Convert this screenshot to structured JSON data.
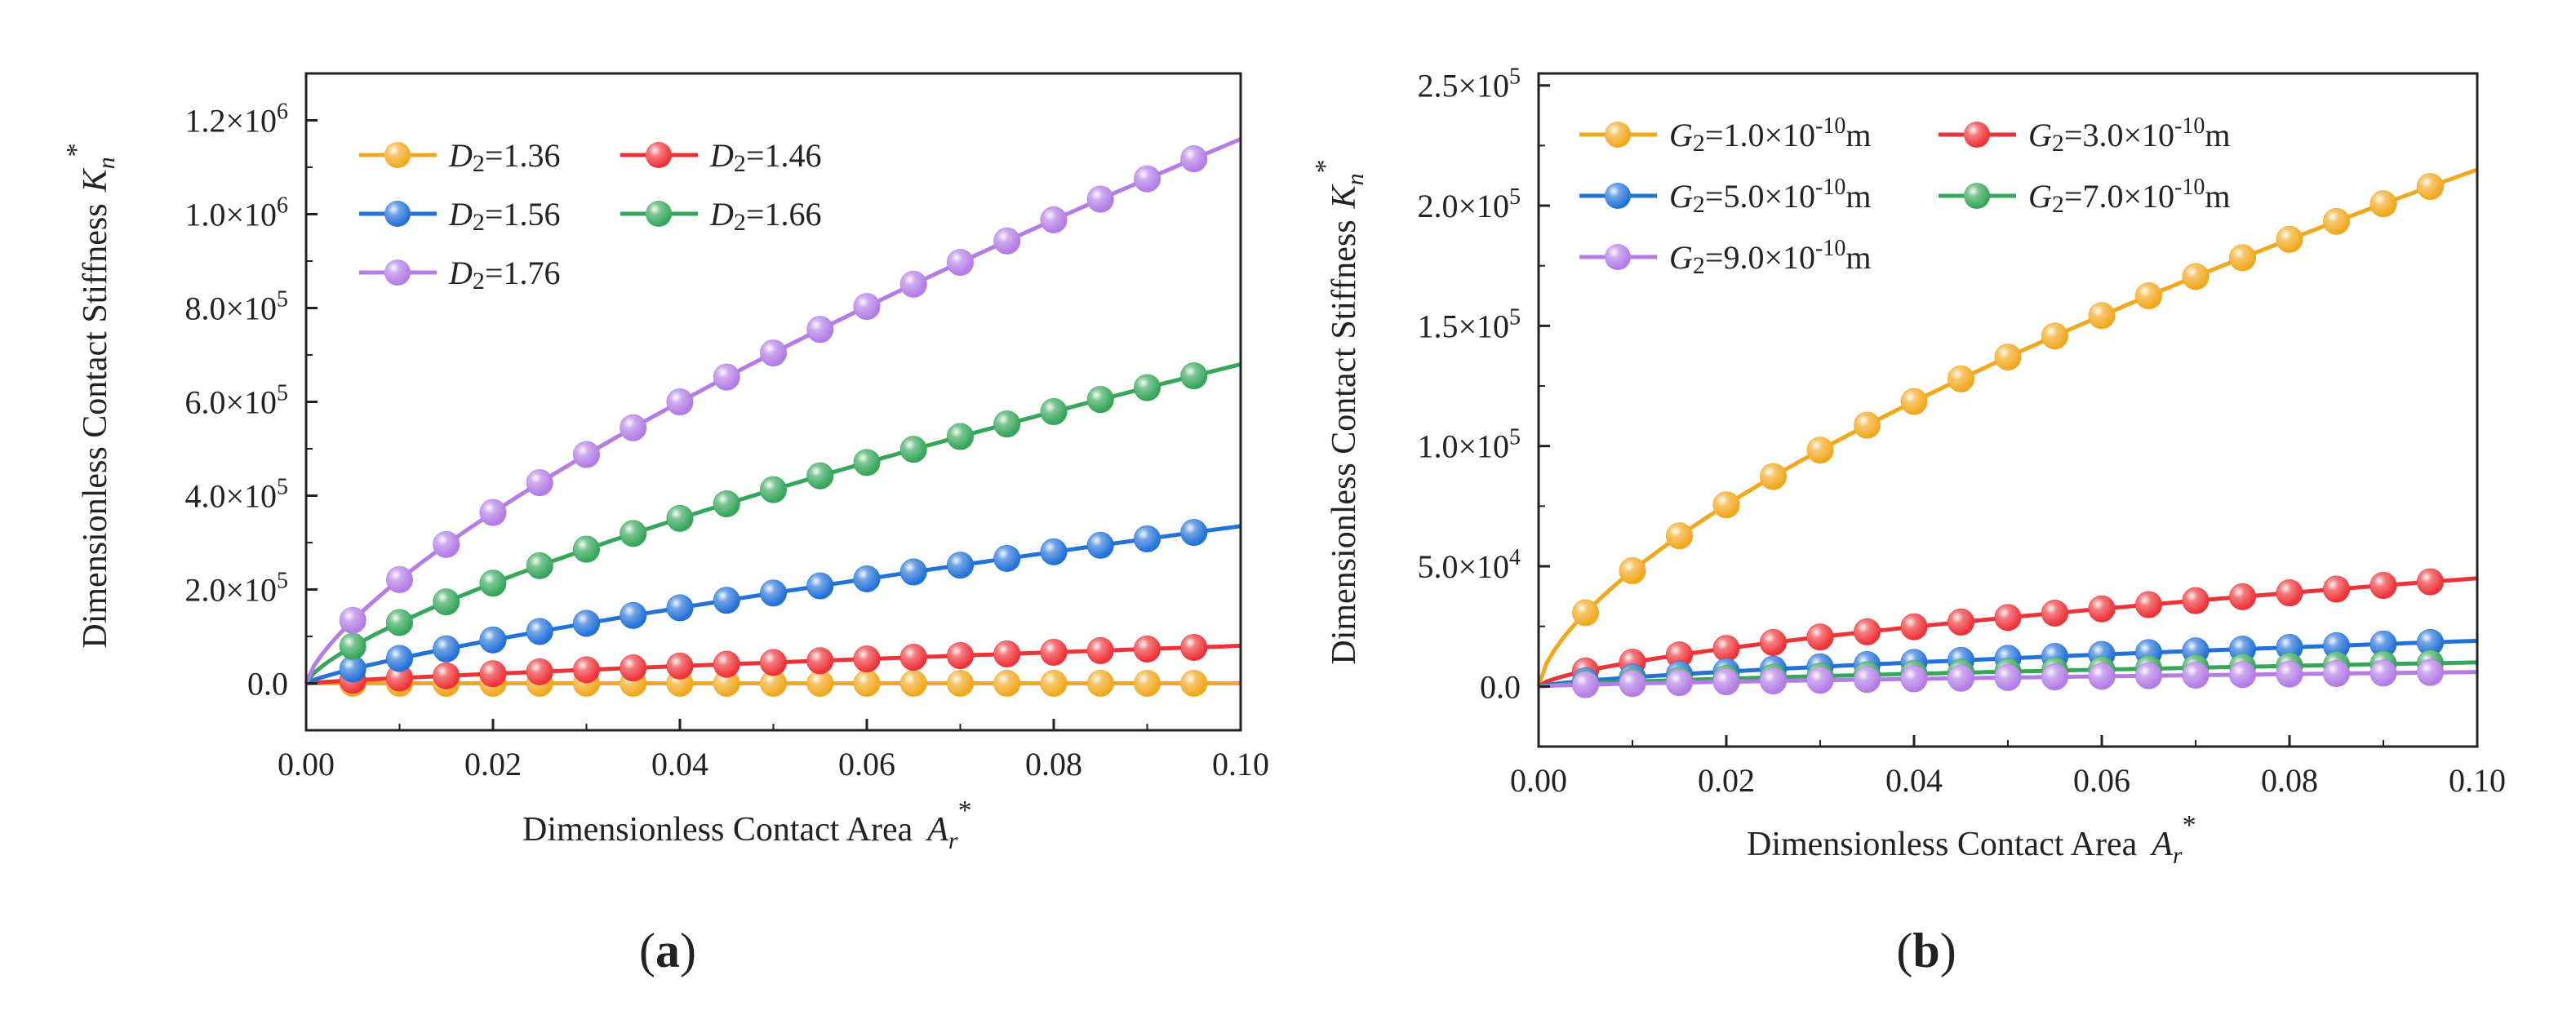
{
  "colors": {
    "c1": "#f2a81d",
    "c2": "#ee3338",
    "c3": "#2372d8",
    "c4": "#35a65a",
    "c5": "#b37ce6",
    "axis": "#222222"
  },
  "panels": [
    {
      "label_open": "(",
      "label_letter": "a",
      "label_close": ")",
      "xlabel_text": "Dimensionless Contact Area",
      "xlabel_sym": "A",
      "xlabel_sub": "r",
      "xlabel_sup": "*",
      "ylabel_text": "Dimensionless Contact Stiffness",
      "ylabel_sym": "K",
      "ylabel_sub": "n",
      "ylabel_sup": "*"
    },
    {
      "label_open": "(",
      "label_letter": "b",
      "label_close": ")",
      "xlabel_text": "Dimensionless Contact Area",
      "xlabel_sym": "A",
      "xlabel_sub": "r",
      "xlabel_sup": "*",
      "ylabel_text": "Dimensionless Contact Stiffness",
      "ylabel_sym": "K",
      "ylabel_sub": "n",
      "ylabel_sup": "*"
    }
  ],
  "chart_data": [
    {
      "type": "line",
      "panel": "a",
      "x_ticks": [
        "0.00",
        "0.02",
        "0.04",
        "0.06",
        "0.08",
        "0.10"
      ],
      "x_tick_values": [
        0,
        0.02,
        0.04,
        0.06,
        0.08,
        0.1
      ],
      "y_ticks": [
        {
          "value": 0,
          "mant": "0.0",
          "exp": ""
        },
        {
          "value": 200000,
          "mant": "2.0×10",
          "exp": "5"
        },
        {
          "value": 400000,
          "mant": "4.0×10",
          "exp": "5"
        },
        {
          "value": 600000,
          "mant": "6.0×10",
          "exp": "5"
        },
        {
          "value": 800000,
          "mant": "8.0×10",
          "exp": "5"
        },
        {
          "value": 1000000,
          "mant": "1.0×10",
          "exp": "6"
        },
        {
          "value": 1200000,
          "mant": "1.2×10",
          "exp": "6"
        }
      ],
      "xlim": [
        0,
        0.1
      ],
      "ylim": [
        -100000,
        1300000
      ],
      "marker_x": [
        0.005,
        0.01,
        0.015,
        0.02,
        0.025,
        0.03,
        0.035,
        0.04,
        0.045,
        0.05,
        0.055,
        0.06,
        0.065,
        0.07,
        0.075,
        0.08,
        0.085,
        0.09,
        0.095
      ],
      "series": [
        {
          "name": "D2=1.36",
          "sym": "D",
          "sub": "2",
          "value_text": "=1.36",
          "color_key": "c1",
          "y_end": 0,
          "exp": 1
        },
        {
          "name": "D2=1.46",
          "sym": "D",
          "sub": "2",
          "value_text": "=1.46",
          "color_key": "c2",
          "y_end": 80000,
          "exp": 0.85
        },
        {
          "name": "D2=1.56",
          "sym": "D",
          "sub": "2",
          "value_text": "=1.56",
          "color_key": "c3",
          "y_end": 335000,
          "exp": 0.8
        },
        {
          "name": "D2=1.66",
          "sym": "D",
          "sub": "2",
          "value_text": "=1.66",
          "color_key": "c4",
          "y_end": 680000,
          "exp": 0.72
        },
        {
          "name": "D2=1.76",
          "sym": "D",
          "sub": "2",
          "value_text": "=1.76",
          "color_key": "c5",
          "y_end": 1160000,
          "exp": 0.72
        }
      ]
    },
    {
      "type": "line",
      "panel": "b",
      "x_ticks": [
        "0.00",
        "0.02",
        "0.04",
        "0.06",
        "0.08",
        "0.10"
      ],
      "x_tick_values": [
        0,
        0.02,
        0.04,
        0.06,
        0.08,
        0.1
      ],
      "y_ticks": [
        {
          "value": 0,
          "mant": "0.0",
          "exp": ""
        },
        {
          "value": 50000,
          "mant": "5.0×10",
          "exp": "4"
        },
        {
          "value": 100000,
          "mant": "1.0×10",
          "exp": "5"
        },
        {
          "value": 150000,
          "mant": "1.5×10",
          "exp": "5"
        },
        {
          "value": 200000,
          "mant": "2.0×10",
          "exp": "5"
        },
        {
          "value": 250000,
          "mant": "2.5×10",
          "exp": "5"
        }
      ],
      "xlim": [
        0,
        0.1
      ],
      "ylim": [
        -25000,
        255000
      ],
      "marker_x": [
        0.005,
        0.01,
        0.015,
        0.02,
        0.025,
        0.03,
        0.035,
        0.04,
        0.045,
        0.05,
        0.055,
        0.06,
        0.065,
        0.07,
        0.075,
        0.08,
        0.085,
        0.09,
        0.095
      ],
      "series": [
        {
          "name": "G2=1.0×10^-10 m",
          "sym": "G",
          "sub": "2",
          "value_text": "=1.0×10",
          "exp_text": "-10",
          "unit": "m",
          "color_key": "c1",
          "y_end": 215000,
          "exp": 0.65
        },
        {
          "name": "G2=3.0×10^-10 m",
          "sym": "G",
          "sub": "2",
          "value_text": "=3.0×10",
          "exp_text": "-10",
          "unit": "m",
          "color_key": "c2",
          "y_end": 45000,
          "exp": 0.65
        },
        {
          "name": "G2=5.0×10^-10 m",
          "sym": "G",
          "sub": "2",
          "value_text": "=5.0×10",
          "exp_text": "-10",
          "unit": "m",
          "color_key": "c3",
          "y_end": 19000,
          "exp": 0.7
        },
        {
          "name": "G2=7.0×10^-10 m",
          "sym": "G",
          "sub": "2",
          "value_text": "=7.0×10",
          "exp_text": "-10",
          "unit": "m",
          "color_key": "c4",
          "y_end": 10000,
          "exp": 0.7
        },
        {
          "name": "G2=9.0×10^-10 m",
          "sym": "G",
          "sub": "2",
          "value_text": "=9.0×10",
          "exp_text": "-10",
          "unit": "m",
          "color_key": "c5",
          "y_end": 6000,
          "exp": 0.7
        }
      ]
    }
  ]
}
